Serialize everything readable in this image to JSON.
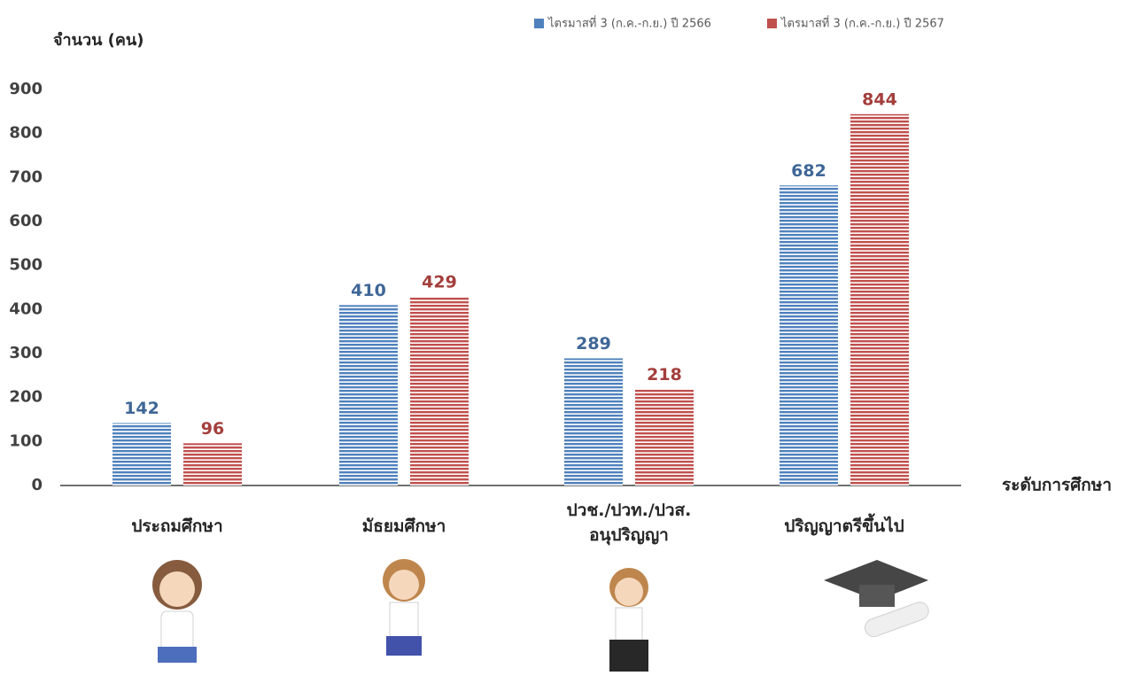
{
  "chart_data": {
    "type": "bar",
    "y_label": "จำนวน (คน)",
    "x_label": "ระดับการศึกษา",
    "categories": [
      "ประถมศึกษา",
      "มัธยมศึกษา",
      "ปวช./ปวท./ปวส.\nอนุปริญญา",
      "ปริญญาตรีขึ้นไป"
    ],
    "series": [
      {
        "name": "ไตรมาสที่ 3 (ก.ค.-ก.ย.) ปี 2566",
        "color": "#4f81bd",
        "values": [
          142,
          410,
          289,
          682
        ]
      },
      {
        "name": "ไตรมาสที่ 3 (ก.ค.-ก.ย.) ปี 2567",
        "color": "#c0504d",
        "values": [
          96,
          429,
          218,
          844
        ]
      }
    ],
    "ylim": [
      0,
      900
    ],
    "yticks": [
      0,
      100,
      200,
      300,
      400,
      500,
      600,
      700,
      800,
      900
    ],
    "legend": "top-right"
  }
}
